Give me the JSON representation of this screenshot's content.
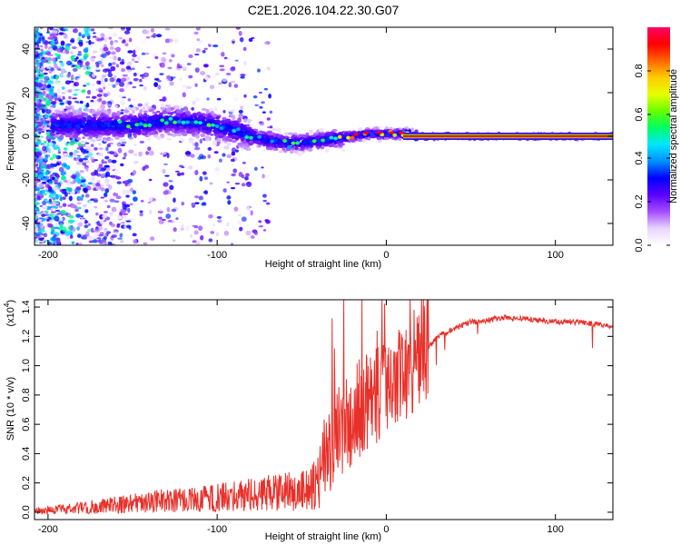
{
  "figure_title": "C2E1.2026.104.22.30.G07",
  "chart_data": [
    {
      "type": "heatmap",
      "title": "C2E1.2026.104.22.30.G07",
      "xlabel": "Height of straight line (km)",
      "ylabel": "Frequency (Hz)",
      "xlim": [
        -208,
        134
      ],
      "ylim": [
        -50,
        50
      ],
      "x_ticks": [
        -200,
        -100,
        0,
        100
      ],
      "x_tick_labels": [
        "-200",
        "-100",
        "0",
        "100"
      ],
      "y_ticks": [
        -40,
        -20,
        0,
        20,
        40
      ],
      "y_tick_labels": [
        "-40",
        "-20",
        "0",
        "20",
        "40"
      ],
      "colorbar": {
        "label": "Normalized spectral amplitude",
        "range": [
          0,
          1
        ],
        "ticks": [
          0.0,
          0.2,
          0.4,
          0.6,
          0.8
        ],
        "tick_labels": [
          "0.0",
          "0.2",
          "0.4",
          "0.6",
          "0.8"
        ],
        "colormap": [
          "#ffffff",
          "#e8d6ff",
          "#a64dff",
          "#5a00ff",
          "#0000ff",
          "#0090ff",
          "#00e5ff",
          "#00ff66",
          "#66ff00",
          "#e6ff00",
          "#ffcc00",
          "#ff6600",
          "#ff0000",
          "#ff0066"
        ]
      },
      "ridge_frequency": [
        {
          "x": -170,
          "f": 5
        },
        {
          "x": -150,
          "f": 5
        },
        {
          "x": -130,
          "f": 7
        },
        {
          "x": -110,
          "f": 6
        },
        {
          "x": -90,
          "f": 3
        },
        {
          "x": -75,
          "f": -1
        },
        {
          "x": -60,
          "f": -3
        },
        {
          "x": -50,
          "f": -3
        },
        {
          "x": -40,
          "f": -2
        },
        {
          "x": -30,
          "f": -1
        },
        {
          "x": -20,
          "f": 0
        },
        {
          "x": -10,
          "f": 1
        },
        {
          "x": 0,
          "f": 1
        },
        {
          "x": 10,
          "f": 1
        },
        {
          "x": 20,
          "f": 0
        },
        {
          "x": 134,
          "f": 0
        }
      ]
    },
    {
      "type": "line",
      "xlabel": "Height of straight line (km)",
      "ylabel": "SNR (10 * v/v)",
      "y_multiplier": "(x10^4)",
      "y_multiplier_base": "(x10",
      "y_multiplier_exp": "4",
      "xlim": [
        -208,
        134
      ],
      "ylim": [
        -0.05,
        1.45
      ],
      "x_ticks": [
        -200,
        -100,
        0,
        100
      ],
      "x_tick_labels": [
        "-200",
        "-100",
        "0",
        "100"
      ],
      "y_ticks": [
        0.0,
        0.2,
        0.4,
        0.6,
        0.8,
        1.0,
        1.2,
        1.4
      ],
      "y_tick_labels": [
        "0.0",
        "0.2",
        "0.4",
        "0.6",
        "0.8",
        "1.0",
        "1.2",
        "1.4"
      ],
      "color": "#e8302a",
      "series": [
        {
          "name": "SNR",
          "x": [
            -208,
            -190,
            -170,
            -150,
            -130,
            -110,
            -100,
            -90,
            -80,
            -70,
            -60,
            -50,
            -40,
            -35,
            -30,
            -25,
            -20,
            -15,
            -10,
            -5,
            0,
            5,
            10,
            15,
            20,
            25,
            30,
            40,
            50,
            60,
            70,
            80,
            90,
            100,
            110,
            120,
            134
          ],
          "y": [
            0.01,
            0.02,
            0.04,
            0.06,
            0.08,
            0.09,
            0.1,
            0.11,
            0.12,
            0.13,
            0.14,
            0.15,
            0.2,
            0.42,
            0.55,
            0.6,
            0.65,
            0.72,
            0.75,
            0.8,
            0.85,
            0.88,
            0.95,
            1.0,
            1.05,
            1.12,
            1.2,
            1.25,
            1.3,
            1.31,
            1.33,
            1.32,
            1.31,
            1.3,
            1.3,
            1.29,
            1.27
          ]
        }
      ]
    }
  ]
}
